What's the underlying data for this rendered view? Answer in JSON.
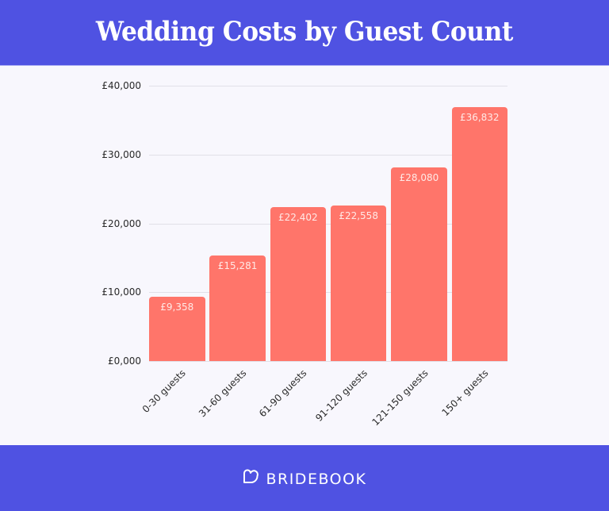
{
  "header": {
    "title": "Wedding Costs by Guest Count"
  },
  "footer": {
    "brand": "BRIDEBOOK",
    "logo_icon": "heart-outline-icon"
  },
  "colors": {
    "banner": "#4f52e2",
    "bar": "#ff756a",
    "background": "#f8f7fd",
    "bar_label": "#ffe9e6"
  },
  "y_ticks": [
    "£0,000",
    "£10,000",
    "£20,000",
    "£30,000",
    "£40,000"
  ],
  "bar_labels": [
    "£9,358",
    "£15,281",
    "£22,402",
    "£22,558",
    "£28,080",
    "£36,832"
  ],
  "chart_data": {
    "type": "bar",
    "title": "Wedding Costs by Guest Count",
    "xlabel": "",
    "ylabel": "",
    "categories": [
      "0-30 guests",
      "31-60 guests",
      "61-90 guests",
      "91-120 guests",
      "121-150 guests",
      "150+ guests"
    ],
    "values": [
      9358,
      15281,
      22402,
      22558,
      28080,
      36832
    ],
    "ylim": [
      0,
      40000
    ],
    "y_tick_values": [
      0,
      10000,
      20000,
      30000,
      40000
    ],
    "currency": "GBP",
    "grid": true,
    "legend": null,
    "data_labels": true
  }
}
